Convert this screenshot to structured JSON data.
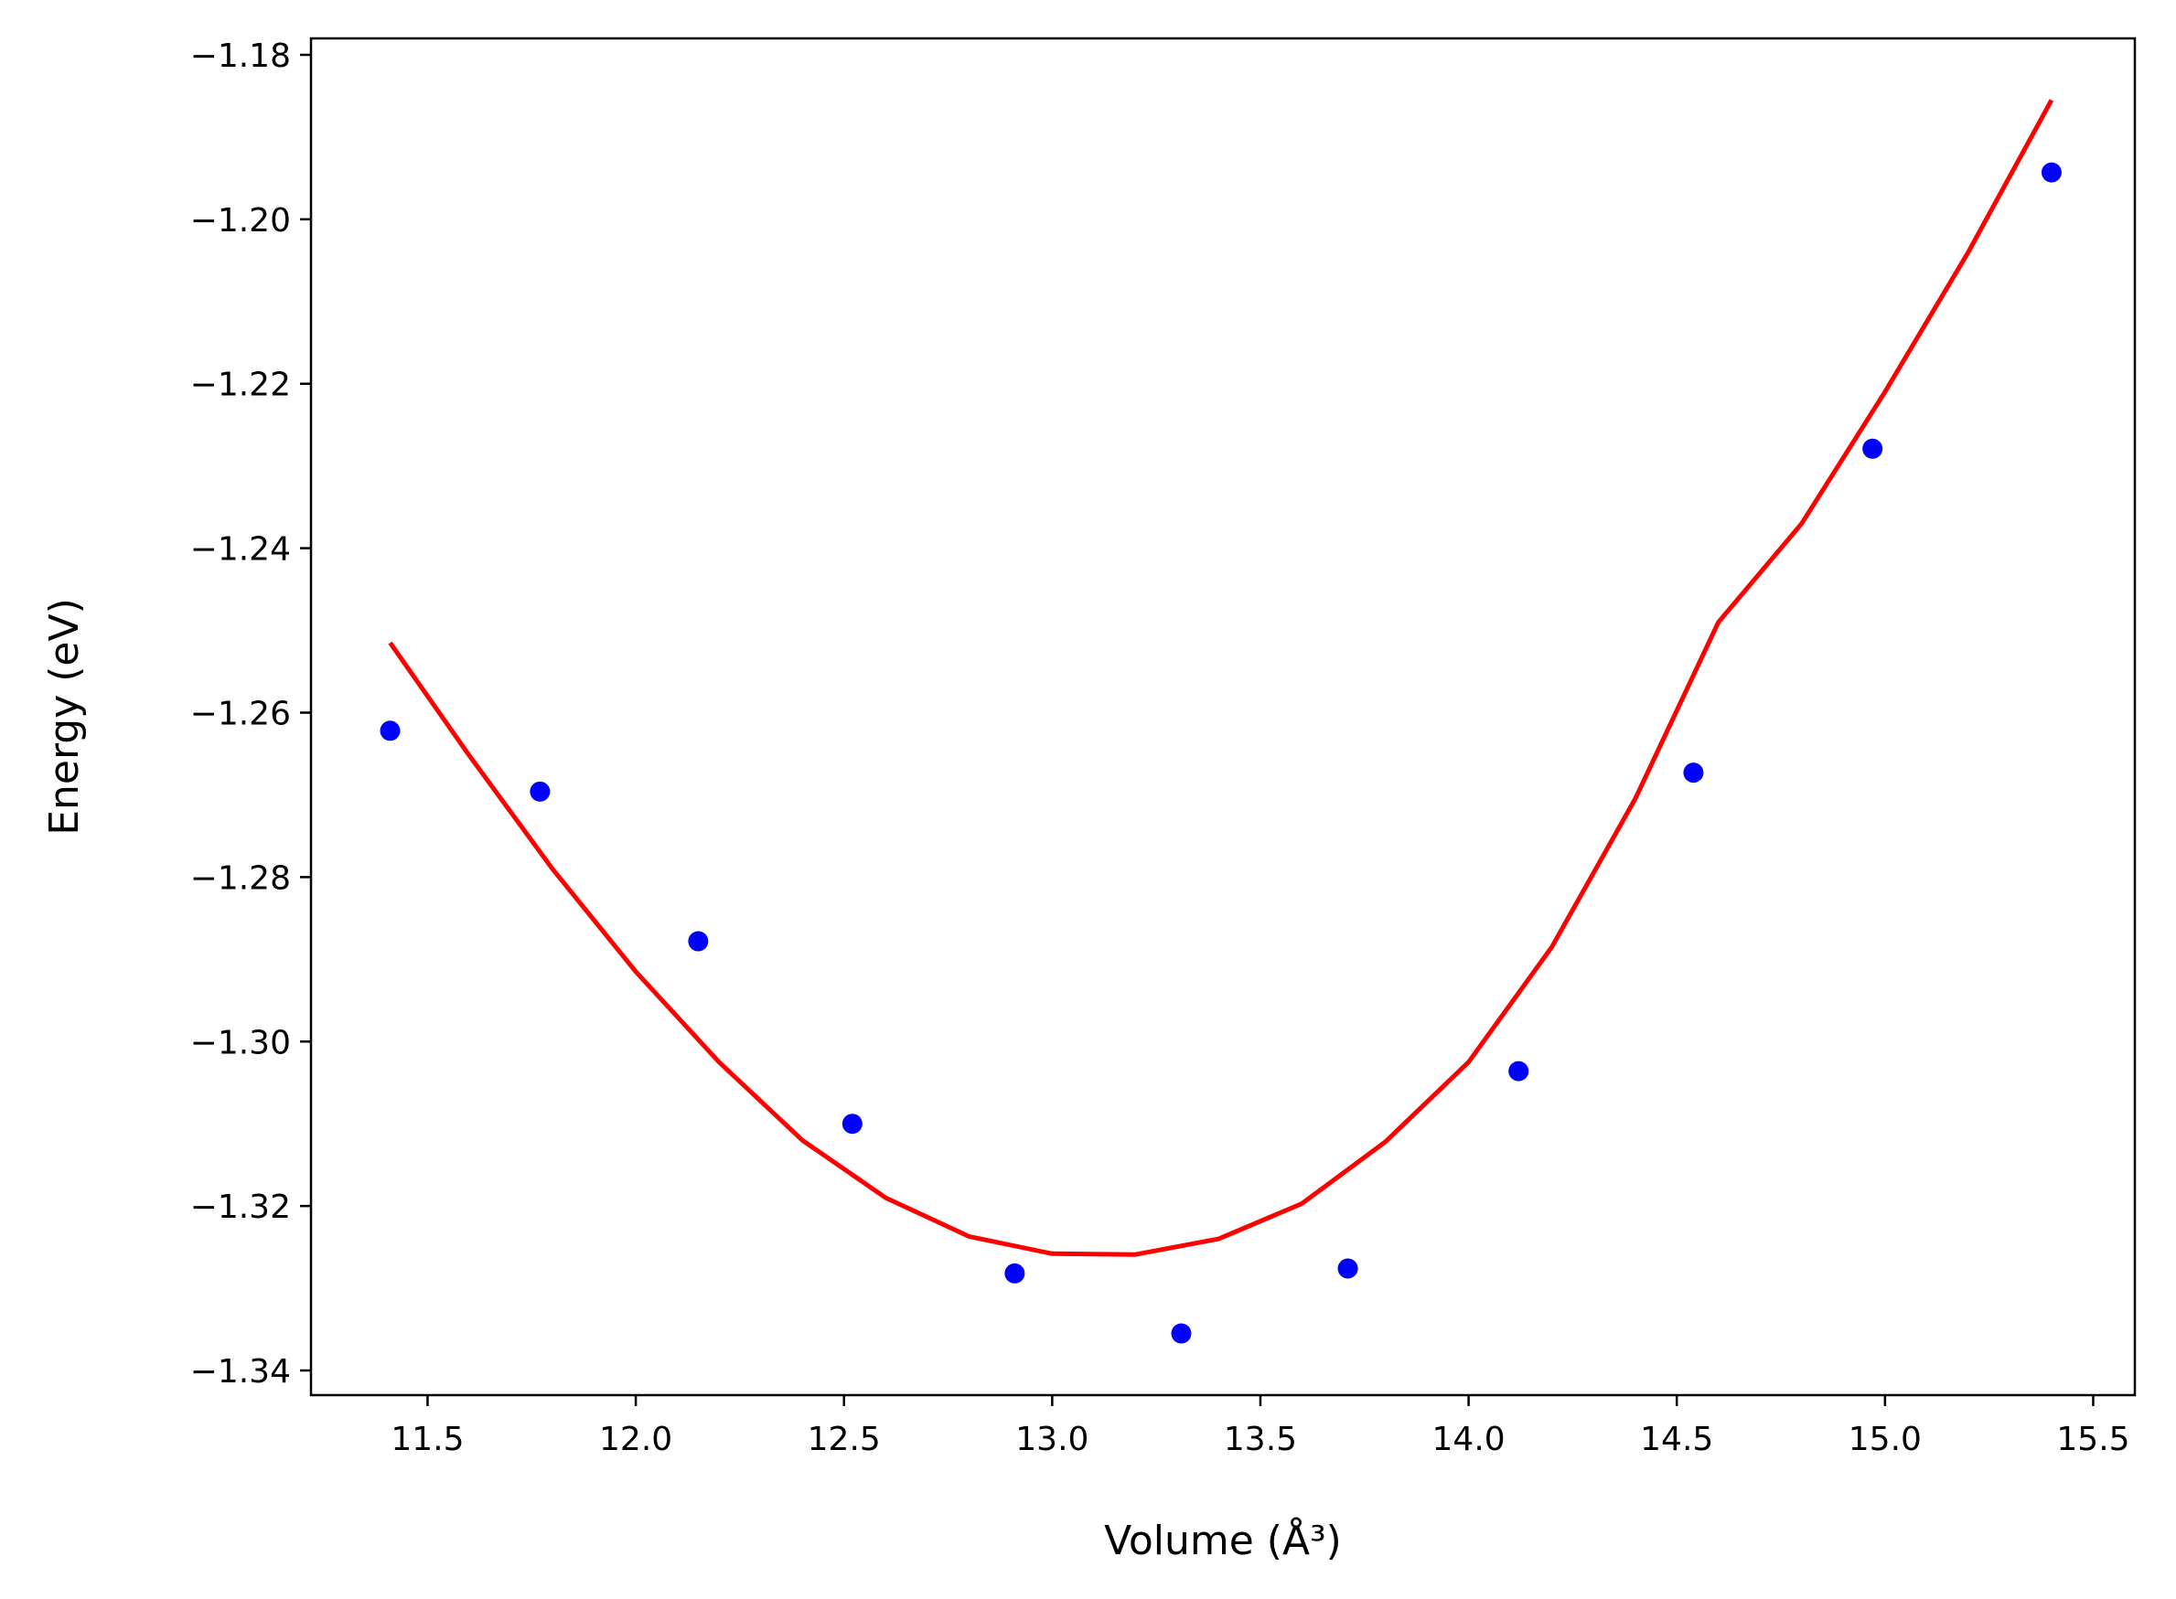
{
  "chart_data": {
    "type": "scatter",
    "xlabel": "Volume (Å³)",
    "ylabel": "Energy (eV)",
    "xlim": [
      11.22,
      15.6
    ],
    "ylim": [
      -1.343,
      -1.178
    ],
    "xticks": [
      11.5,
      12.0,
      12.5,
      13.0,
      13.5,
      14.0,
      14.5,
      15.0,
      15.5
    ],
    "xtick_labels": [
      "11.5",
      "12.0",
      "12.5",
      "13.0",
      "13.5",
      "14.0",
      "14.5",
      "15.0",
      "15.5"
    ],
    "yticks": [
      -1.34,
      -1.32,
      -1.3,
      -1.28,
      -1.26,
      -1.24,
      -1.22,
      -1.2,
      -1.18
    ],
    "ytick_labels": [
      "−1.34",
      "−1.32",
      "−1.30",
      "−1.28",
      "−1.26",
      "−1.24",
      "−1.22",
      "−1.20",
      "−1.18"
    ],
    "grid": false,
    "series": [
      {
        "kind": "scatter",
        "color": "#0000ff",
        "x": [
          11.41,
          11.77,
          12.15,
          12.52,
          12.91,
          13.31,
          13.71,
          14.12,
          14.54,
          14.97,
          15.4
        ],
        "y": [
          -1.2622,
          -1.2696,
          -1.2878,
          -1.31,
          -1.3282,
          -1.3355,
          -1.3276,
          -1.3036,
          -1.2673,
          -1.2279,
          -1.1943
        ]
      },
      {
        "kind": "line",
        "color": "#ff0000",
        "x": [
          11.41,
          11.6,
          11.8,
          12.0,
          12.2,
          12.4,
          12.6,
          12.8,
          13.0,
          13.2,
          13.4,
          13.6,
          13.8,
          14.0,
          14.2,
          14.4,
          14.6,
          14.8,
          15.0,
          15.2,
          15.4
        ],
        "y": [
          -1.2515,
          -1.2652,
          -1.279,
          -1.2915,
          -1.3025,
          -1.312,
          -1.319,
          -1.3237,
          -1.3258,
          -1.3259,
          -1.324,
          -1.3197,
          -1.3122,
          -1.3025,
          -1.2885,
          -1.2705,
          -1.249,
          -1.237,
          -1.221,
          -1.204,
          -1.1855
        ]
      }
    ]
  }
}
